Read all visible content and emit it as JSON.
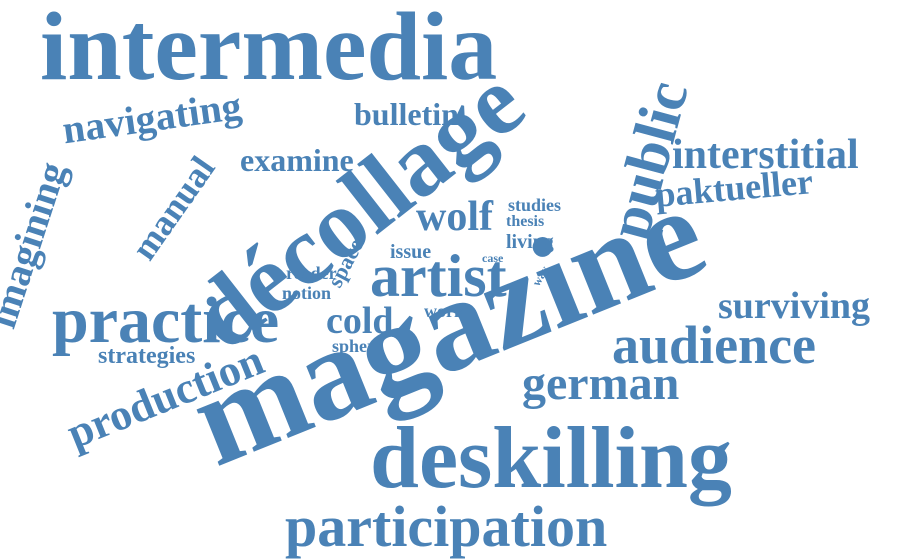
{
  "colors": {
    "word": "#4a82b6",
    "background": "#ffffff"
  },
  "words": {
    "intermedia": "intermedia",
    "magazine": "magazine",
    "decollage": "décollage",
    "deskilling": "deskilling",
    "practice": "practice",
    "artist": "artist",
    "participation": "participation",
    "public": "public",
    "audience": "audience",
    "german": "german",
    "production": "production",
    "navigating": "navigating",
    "imagining": "imagining",
    "interstitial": "interstitial",
    "examine": "examine",
    "paktueller": "paktueller",
    "surviving": "surviving",
    "wolf": "wolf",
    "manual": "manual",
    "bulletin": "bulletin",
    "cold": "cold",
    "strategies": "strategies",
    "studies": "studies",
    "thesis": "thesis",
    "living": "living",
    "space": "space",
    "issue": "issue",
    "case": "case",
    "way": "way",
    "reader": "reader",
    "notion": "notion",
    "work": "work",
    "sphere": "sphere"
  }
}
